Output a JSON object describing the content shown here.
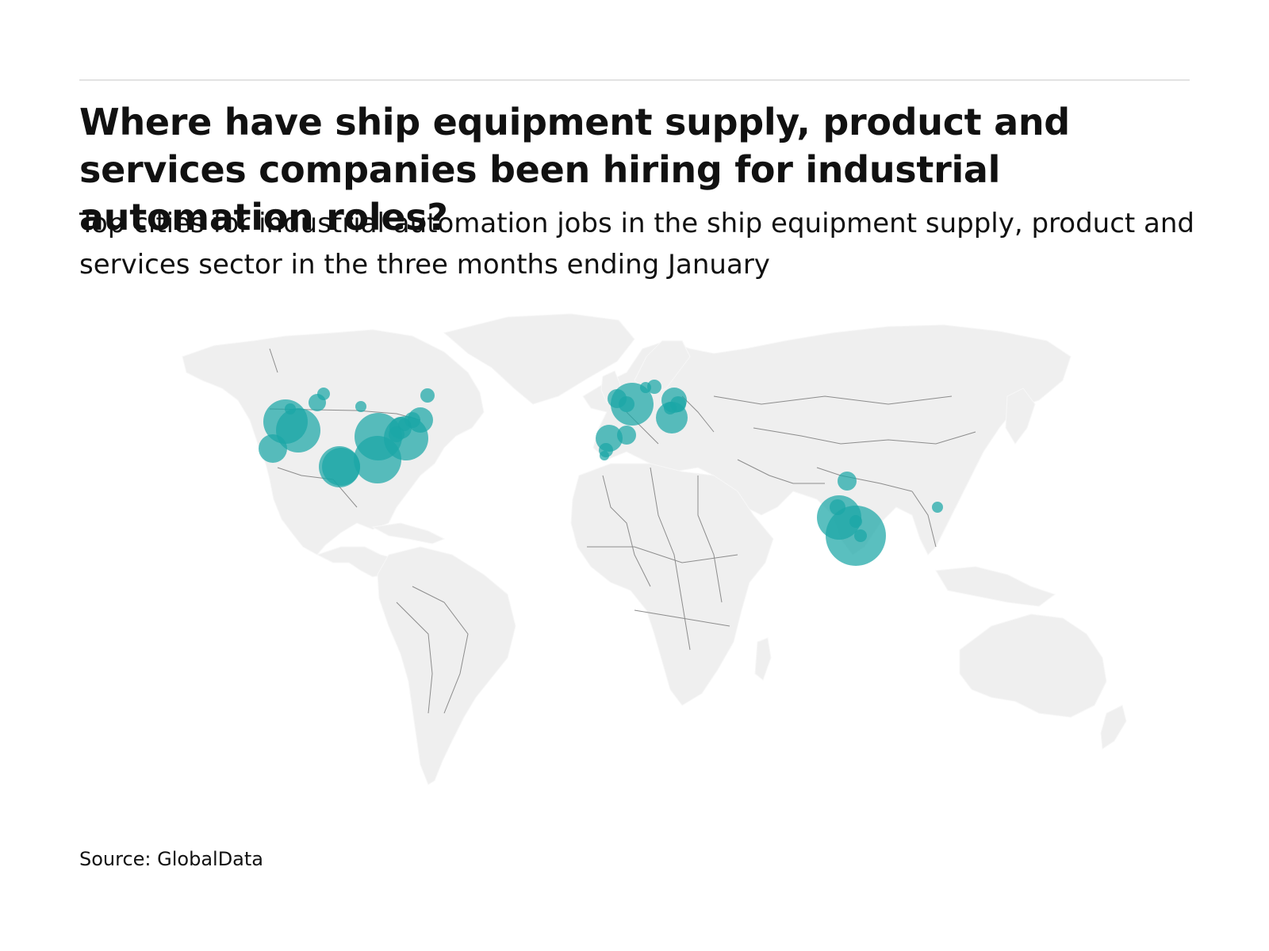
{
  "header": {
    "title": "Where have ship equipment supply, product and services companies been hiring for industrial automation roles?",
    "subtitle": "Top cities for industrial automation jobs in the ship equipment supply, product and services sector in the three months ending January"
  },
  "footer": {
    "source": "Source: GlobalData"
  },
  "colors": {
    "bubble": "#1aa6a6",
    "land": "#efefef",
    "border": "#8c8c8c"
  },
  "map": {
    "projection": "equirectangular-like world map",
    "regions_with_hiring": [
      "North America",
      "Europe",
      "South Asia",
      "Southeast Asia"
    ],
    "bubble_ids": [
      "na-seattle",
      "na-vancouver",
      "na-calgary",
      "na-portland",
      "na-sf",
      "na-la",
      "na-minneapolis",
      "na-chicago",
      "na-detroit",
      "na-houston",
      "na-dallas",
      "na-pittsburgh",
      "na-boston",
      "na-newyork",
      "na-philadelphia",
      "na-toronto",
      "na-montreal",
      "na-halifax",
      "eu-london",
      "eu-paris",
      "eu-amsterdam",
      "eu-hamburg",
      "eu-copenhagen",
      "eu-berlin",
      "eu-munich",
      "eu-vienna",
      "eu-prague",
      "eu-madrid",
      "eu-lisbon",
      "eu-barcelona",
      "eu-seville",
      "as-delhi",
      "as-mumbai",
      "as-pune",
      "as-bangalore",
      "as-chennai",
      "as-hyderabad",
      "as-hanoi"
    ]
  }
}
